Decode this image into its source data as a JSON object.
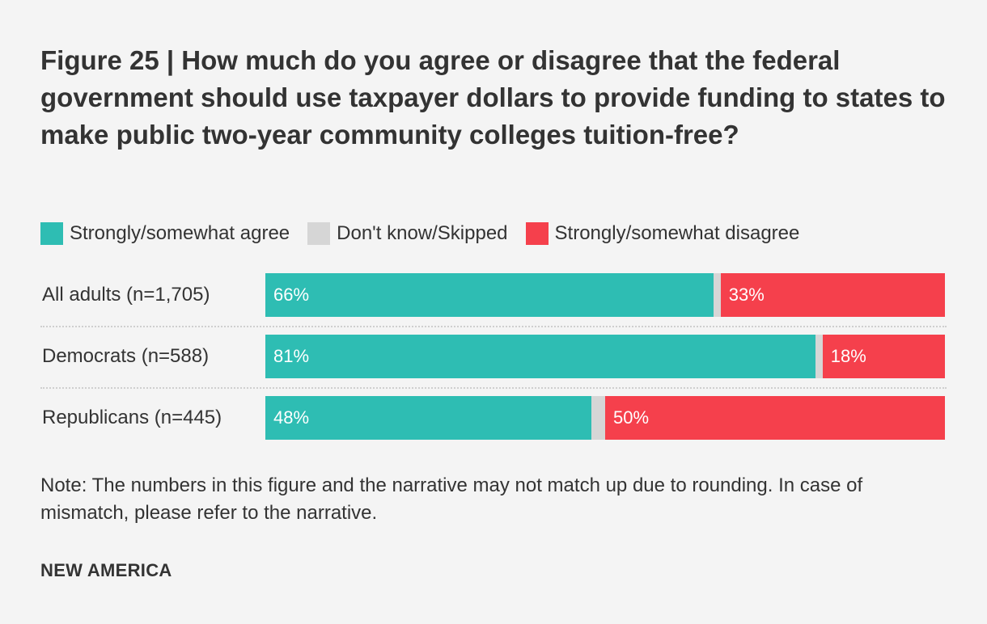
{
  "title": "Figure 25 | How much do you agree or disagree that the federal government should use taxpayer dollars to provide funding to states to make public two-year community colleges tuition-free?",
  "note": "Note: The numbers in this figure and the narrative may not match up due to rounding. In case of mismatch, please refer to the narrative.",
  "source": "NEW AMERICA",
  "colors": {
    "agree": "#2ebdb3",
    "dont_know": "#d6d6d6",
    "disagree": "#f5404c"
  },
  "chart_data": {
    "type": "bar",
    "orientation": "horizontal",
    "stacked": true,
    "title": "Figure 25 | How much do you agree or disagree that the federal government should use taxpayer dollars to provide funding to states to make public two-year community colleges tuition-free?",
    "categories": [
      "All adults (n=1,705)",
      "Democrats (n=588)",
      "Republicans (n=445)"
    ],
    "series": [
      {
        "name": "Strongly/somewhat agree",
        "key": "agree",
        "values": [
          66,
          81,
          48
        ],
        "labels": [
          "66%",
          "81%",
          "48%"
        ]
      },
      {
        "name": "Don't know/Skipped",
        "key": "dont_know",
        "values": [
          1,
          1,
          2
        ],
        "labels": [
          "",
          "",
          ""
        ]
      },
      {
        "name": "Strongly/somewhat disagree",
        "key": "disagree",
        "values": [
          33,
          18,
          50
        ],
        "labels": [
          "33%",
          "18%",
          "50%"
        ]
      }
    ],
    "xlim": [
      0,
      100
    ],
    "legend_position": "top-left",
    "grid": false
  }
}
